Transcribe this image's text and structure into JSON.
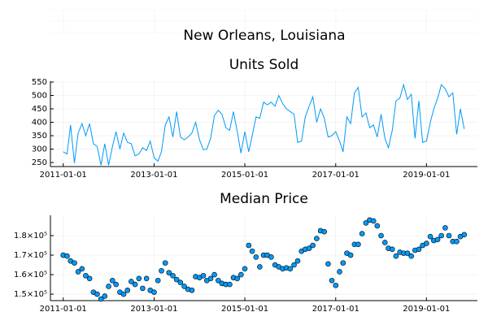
{
  "title": "New Orleans, Louisiana",
  "chart_data": [
    {
      "type": "line",
      "title": "Units Sold",
      "color": "#009af9",
      "grid": true,
      "x": [
        "2011-01-01",
        "2011-02-01",
        "2011-03-01",
        "2011-04-01",
        "2011-05-01",
        "2011-06-01",
        "2011-07-01",
        "2011-08-01",
        "2011-09-01",
        "2011-10-01",
        "2011-11-01",
        "2011-12-01",
        "2012-01-01",
        "2012-02-01",
        "2012-03-01",
        "2012-04-01",
        "2012-05-01",
        "2012-06-01",
        "2012-07-01",
        "2012-08-01",
        "2012-09-01",
        "2012-10-01",
        "2012-11-01",
        "2012-12-01",
        "2013-01-01",
        "2013-02-01",
        "2013-03-01",
        "2013-04-01",
        "2013-05-01",
        "2013-06-01",
        "2013-07-01",
        "2013-08-01",
        "2013-09-01",
        "2013-10-01",
        "2013-11-01",
        "2013-12-01",
        "2014-01-01",
        "2014-02-01",
        "2014-03-01",
        "2014-04-01",
        "2014-05-01",
        "2014-06-01",
        "2014-07-01",
        "2014-08-01",
        "2014-09-01",
        "2014-10-01",
        "2014-11-01",
        "2014-12-01",
        "2015-01-01",
        "2015-02-01",
        "2015-03-01",
        "2015-04-01",
        "2015-05-01",
        "2015-06-01",
        "2015-07-01",
        "2015-08-01",
        "2015-09-01",
        "2015-10-01",
        "2015-11-01",
        "2015-12-01",
        "2016-01-01",
        "2016-02-01",
        "2016-03-01",
        "2016-04-01",
        "2016-05-01",
        "2016-06-01",
        "2016-07-01",
        "2016-08-01",
        "2016-09-01",
        "2016-10-01",
        "2016-11-01",
        "2016-12-01",
        "2017-01-01",
        "2017-02-01",
        "2017-03-01",
        "2017-04-01",
        "2017-05-01",
        "2017-06-01",
        "2017-07-01",
        "2017-08-01",
        "2017-09-01",
        "2017-10-01",
        "2017-11-01",
        "2017-12-01",
        "2018-01-01",
        "2018-02-01",
        "2018-03-01",
        "2018-04-01",
        "2018-05-01",
        "2018-06-01",
        "2018-07-01",
        "2018-08-01",
        "2018-09-01",
        "2018-10-01",
        "2018-11-01",
        "2018-12-01",
        "2019-01-01",
        "2019-02-01",
        "2019-03-01",
        "2019-04-01",
        "2019-05-01",
        "2019-06-01",
        "2019-07-01",
        "2019-08-01",
        "2019-09-01",
        "2019-10-01",
        "2019-11-01"
      ],
      "values": [
        290,
        282,
        390,
        248,
        360,
        395,
        350,
        395,
        320,
        310,
        240,
        320,
        240,
        310,
        365,
        300,
        360,
        325,
        320,
        275,
        282,
        305,
        295,
        330,
        268,
        255,
        290,
        390,
        420,
        345,
        440,
        345,
        335,
        345,
        360,
        400,
        335,
        298,
        300,
        340,
        425,
        445,
        430,
        380,
        370,
        440,
        365,
        285,
        365,
        290,
        350,
        420,
        415,
        475,
        465,
        475,
        460,
        500,
        470,
        450,
        440,
        430,
        325,
        330,
        420,
        460,
        495,
        400,
        450,
        415,
        345,
        350,
        365,
        330,
        290,
        420,
        395,
        510,
        530,
        420,
        435,
        380,
        390,
        345,
        430,
        340,
        305,
        370,
        480,
        490,
        540,
        485,
        505,
        340,
        480,
        325,
        330,
        400,
        450,
        490,
        540,
        525,
        495,
        510,
        355,
        450,
        375
      ],
      "xlim": [
        "2010-09-20",
        "2020-02-15"
      ],
      "xticks": [
        "2011-01-01",
        "2013-01-01",
        "2015-01-01",
        "2017-01-01",
        "2019-01-01"
      ],
      "ylim": [
        235,
        553
      ],
      "yticks": [
        250,
        300,
        350,
        400,
        450,
        500,
        550
      ]
    },
    {
      "type": "scatter",
      "title": "Median Price",
      "color": "#009af9",
      "grid": true,
      "x": [
        "2011-01-01",
        "2011-02-01",
        "2011-03-01",
        "2011-04-01",
        "2011-05-01",
        "2011-06-01",
        "2011-07-01",
        "2011-08-01",
        "2011-09-01",
        "2011-10-01",
        "2011-11-01",
        "2011-12-01",
        "2012-01-01",
        "2012-02-01",
        "2012-03-01",
        "2012-04-01",
        "2012-05-01",
        "2012-06-01",
        "2012-07-01",
        "2012-08-01",
        "2012-09-01",
        "2012-10-01",
        "2012-11-01",
        "2012-12-01",
        "2013-01-01",
        "2013-02-01",
        "2013-03-01",
        "2013-04-01",
        "2013-05-01",
        "2013-06-01",
        "2013-07-01",
        "2013-08-01",
        "2013-09-01",
        "2013-10-01",
        "2013-11-01",
        "2013-12-01",
        "2014-01-01",
        "2014-02-01",
        "2014-03-01",
        "2014-04-01",
        "2014-05-01",
        "2014-06-01",
        "2014-07-01",
        "2014-08-01",
        "2014-09-01",
        "2014-10-01",
        "2014-11-01",
        "2014-12-01",
        "2015-01-01",
        "2015-02-01",
        "2015-03-01",
        "2015-04-01",
        "2015-05-01",
        "2015-06-01",
        "2015-07-01",
        "2015-08-01",
        "2015-09-01",
        "2015-10-01",
        "2015-11-01",
        "2015-12-01",
        "2016-01-01",
        "2016-02-01",
        "2016-03-01",
        "2016-04-01",
        "2016-05-01",
        "2016-06-01",
        "2016-07-01",
        "2016-08-01",
        "2016-09-01",
        "2016-10-01",
        "2016-11-01",
        "2016-12-01",
        "2017-01-01",
        "2017-02-01",
        "2017-03-01",
        "2017-04-01",
        "2017-05-01",
        "2017-06-01",
        "2017-07-01",
        "2017-08-01",
        "2017-09-01",
        "2017-10-01",
        "2017-11-01",
        "2017-12-01",
        "2018-01-01",
        "2018-02-01",
        "2018-03-01",
        "2018-04-01",
        "2018-05-01",
        "2018-06-01",
        "2018-07-01",
        "2018-08-01",
        "2018-09-01",
        "2018-10-01",
        "2018-11-01",
        "2018-12-01",
        "2019-01-01",
        "2019-02-01",
        "2019-03-01",
        "2019-04-01",
        "2019-05-01",
        "2019-06-01",
        "2019-07-01",
        "2019-08-01",
        "2019-09-01",
        "2019-10-01",
        "2019-11-01"
      ],
      "values": [
        170000,
        169500,
        167000,
        166000,
        161500,
        163000,
        159500,
        158000,
        151000,
        150000,
        147500,
        149000,
        154000,
        157000,
        155000,
        151000,
        150000,
        152000,
        156500,
        155000,
        158000,
        153000,
        158000,
        152000,
        151000,
        157000,
        162000,
        166000,
        161000,
        159500,
        157500,
        156000,
        154000,
        152500,
        152000,
        159000,
        158500,
        159500,
        157000,
        158000,
        160000,
        157000,
        155500,
        155000,
        155000,
        158500,
        158000,
        160000,
        163000,
        175000,
        172000,
        169000,
        164000,
        170000,
        170000,
        169000,
        165000,
        164000,
        163000,
        163500,
        163000,
        165000,
        167000,
        172000,
        173000,
        173500,
        175000,
        178500,
        182500,
        182000,
        165500,
        157000,
        154500,
        161500,
        166000,
        171000,
        170000,
        175500,
        175500,
        181000,
        186500,
        188000,
        187500,
        185000,
        180000,
        176500,
        173500,
        173000,
        169500,
        171500,
        171000,
        171000,
        169500,
        172500,
        173000,
        175000,
        176000,
        179500,
        177500,
        178000,
        180000,
        184000,
        180000,
        177000,
        177000,
        179500,
        180500
      ],
      "xlim": [
        "2010-09-20",
        "2020-02-15"
      ],
      "xticks": [
        "2011-01-01",
        "2013-01-01",
        "2015-01-01",
        "2017-01-01",
        "2019-01-01"
      ],
      "ylim": [
        146700,
        190400
      ],
      "yticks": [
        {
          "value": 150000,
          "label": "1.5×10⁵"
        },
        {
          "value": 160000,
          "label": "1.6×10⁵"
        },
        {
          "value": 170000,
          "label": "1.7×10⁵"
        },
        {
          "value": 180000,
          "label": "1.8×10⁵"
        }
      ]
    }
  ]
}
